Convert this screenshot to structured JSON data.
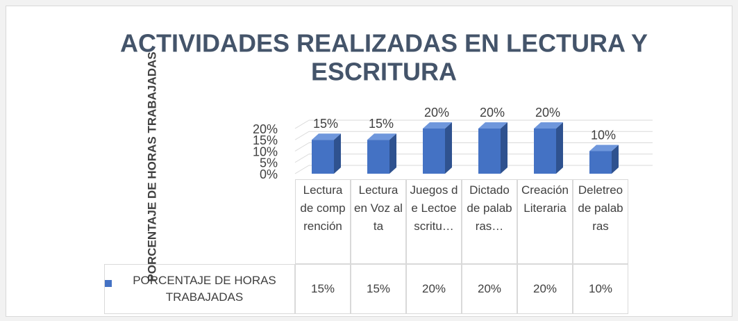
{
  "chart_data": {
    "type": "bar3d",
    "title": "ACTIVIDADES REALIZADAS EN LECTURA Y ESCRITURA",
    "y_label": "PORCENTAJE DE HORAS TRABAJADAS",
    "categories": [
      "Lectura de comprención",
      "Lectura en Voz alta",
      "Juegos de Lectoescritu…",
      "Dictado de palabras…",
      "Creación Literaria",
      "Deletreo de palabras"
    ],
    "series": [
      {
        "name": "PORCENTAJE DE HORAS TRABAJADAS",
        "color": "#4472c4",
        "values": [
          15,
          15,
          20,
          20,
          20,
          10
        ],
        "value_labels": [
          "15%",
          "15%",
          "20%",
          "20%",
          "20%",
          "10%"
        ]
      }
    ],
    "ylim": [
      0,
      20
    ],
    "yticks": [
      {
        "value": 0,
        "label": "0%"
      },
      {
        "value": 5,
        "label": "5%"
      },
      {
        "value": 10,
        "label": "10%"
      },
      {
        "value": 15,
        "label": "15%"
      },
      {
        "value": 20,
        "label": "20%"
      }
    ],
    "grid": true,
    "data_table": true
  }
}
